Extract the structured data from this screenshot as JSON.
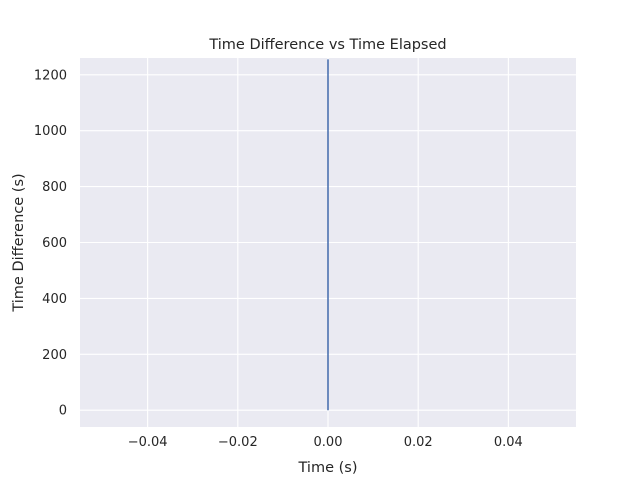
{
  "chart_data": {
    "type": "line",
    "title": "Time Difference vs Time Elapsed",
    "xlabel": "Time (s)",
    "ylabel": "Time Difference (s)",
    "xlim": [
      -0.055,
      0.055
    ],
    "ylim": [
      -60,
      1260
    ],
    "xticks": [
      -0.04,
      -0.02,
      0.0,
      0.02,
      0.04
    ],
    "xtick_labels": [
      "−0.04",
      "−0.02",
      "0.00",
      "0.02",
      "0.04"
    ],
    "yticks": [
      0,
      200,
      400,
      600,
      800,
      1000,
      1200
    ],
    "ytick_labels": [
      "0",
      "200",
      "400",
      "600",
      "800",
      "1000",
      "1200"
    ],
    "grid": true,
    "legend": "none",
    "colors": {
      "plot_background": "#eaeaf2",
      "grid": "#ffffff",
      "series": "#4c72b0",
      "text": "#262626"
    },
    "series": [
      {
        "x": [
          0.0,
          0.0
        ],
        "y": [
          0,
          1255
        ]
      }
    ]
  }
}
